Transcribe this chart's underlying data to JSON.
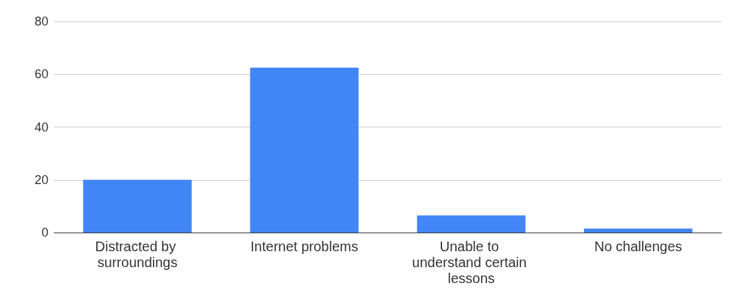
{
  "chart_data": {
    "type": "bar",
    "categories": [
      "Distracted by surroundings",
      "Internet problems",
      "Unable to understand certain lessons",
      "No challenges"
    ],
    "values": [
      20,
      62.5,
      6.5,
      1.5
    ],
    "color": "#4285f4",
    "ylim": [
      0,
      80
    ],
    "yticks": [
      0,
      20,
      40,
      60,
      80
    ],
    "grid": "y"
  }
}
